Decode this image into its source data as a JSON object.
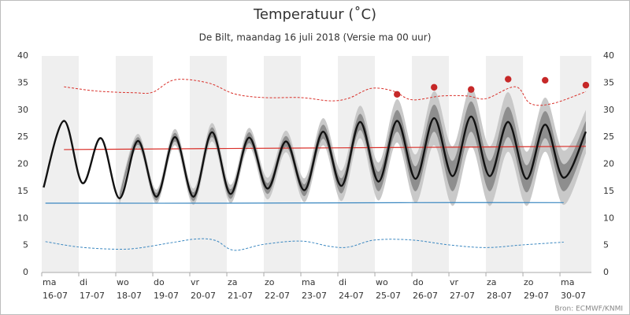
{
  "chart_data": {
    "type": "line",
    "title": "Temperatuur (˚C)",
    "subtitle": "De Bilt, maandag 16 juli 2018 (Versie ma 00 uur)",
    "source": "Bron: ECMWF/KNMI",
    "xlim": [
      0,
      14.85
    ],
    "xticks": [
      {
        "value": 0,
        "label": "ma\n16-07"
      },
      {
        "value": 1,
        "label": "di\n17-07"
      },
      {
        "value": 2,
        "label": "wo\n18-07"
      },
      {
        "value": 3,
        "label": "do\n19-07"
      },
      {
        "value": 4,
        "label": "vr\n20-07"
      },
      {
        "value": 5,
        "label": "za\n21-07"
      },
      {
        "value": 6,
        "label": "zo\n22-07"
      },
      {
        "value": 7,
        "label": "ma\n23-07"
      },
      {
        "value": 8,
        "label": "di\n24-07"
      },
      {
        "value": 9,
        "label": "wo\n25-07"
      },
      {
        "value": 10,
        "label": "do\n26-07"
      },
      {
        "value": 11,
        "label": "vr\n27-07"
      },
      {
        "value": 12,
        "label": "za\n28-07"
      },
      {
        "value": 13,
        "label": "zo\n29-07"
      },
      {
        "value": 14,
        "label": "ma\n30-07"
      }
    ],
    "ylim": [
      0,
      40
    ],
    "yticks": [
      0,
      5,
      10,
      15,
      20,
      25,
      30,
      35,
      40
    ],
    "y2lim": [
      0,
      40
    ],
    "y2ticks": [
      0,
      5,
      10,
      15,
      20,
      25,
      30,
      35,
      40
    ],
    "grid": false,
    "series": [
      {
        "type": "band",
        "color": "#c9c9c9",
        "x": [
          2.1,
          2.6,
          3.1,
          3.6,
          4.1,
          4.6,
          5.1,
          5.6,
          6.1,
          6.6,
          7.1,
          7.6,
          8.1,
          8.6,
          9.1,
          9.6,
          10.1,
          10.6,
          11.1,
          11.6,
          12.1,
          12.6,
          13.1,
          13.6,
          14.1,
          14.7
        ],
        "lower": [
          12.5,
          23.0,
          12.7,
          23.5,
          12.5,
          24.2,
          12.8,
          23.1,
          13.5,
          22.2,
          13.0,
          23.5,
          13.2,
          24.8,
          13.3,
          24.0,
          12.8,
          23.5,
          12.3,
          23.3,
          12.3,
          22.3,
          12.3,
          22.3,
          12.5,
          22.0
        ],
        "upper": [
          14.9,
          25.6,
          15.3,
          26.5,
          15.5,
          27.6,
          16.2,
          26.7,
          17.5,
          26.2,
          17.4,
          28.5,
          18.8,
          30.8,
          20.3,
          32.0,
          21.8,
          33.5,
          23.3,
          34.3,
          23.3,
          33.3,
          22.3,
          32.3,
          22.5,
          30.0
        ]
      },
      {
        "type": "band",
        "color": "#8e8e8e",
        "x": [
          2.1,
          2.6,
          3.1,
          3.6,
          4.1,
          4.6,
          5.1,
          5.6,
          6.1,
          6.6,
          7.1,
          7.6,
          8.1,
          8.6,
          9.1,
          9.6,
          10.1,
          10.6,
          11.1,
          11.6,
          12.1,
          12.6,
          13.1,
          13.6,
          14.1,
          14.7
        ],
        "lower": [
          13.1,
          23.6,
          13.3,
          24.2,
          13.2,
          25.0,
          13.6,
          23.9,
          14.5,
          23.2,
          14.1,
          24.7,
          14.6,
          26.3,
          15.0,
          26.0,
          15.0,
          26.0,
          15.0,
          26.0,
          15.0,
          25.0,
          14.8,
          24.8,
          15.0,
          24.0
        ],
        "upper": [
          14.3,
          25.0,
          14.7,
          25.8,
          14.8,
          26.8,
          15.4,
          25.9,
          16.5,
          25.2,
          16.3,
          27.3,
          17.4,
          29.3,
          18.6,
          30.0,
          19.6,
          31.0,
          20.6,
          31.6,
          20.6,
          30.6,
          19.8,
          29.8,
          20.0,
          28.0
        ]
      },
      {
        "type": "line",
        "color": "#3a87c0",
        "width": 1.2,
        "dash": false,
        "x": [
          0.1,
          5,
          10,
          14.1
        ],
        "values": [
          12.8,
          12.8,
          12.9,
          12.9
        ]
      },
      {
        "type": "line",
        "color": "#d9302a",
        "width": 1.2,
        "dash": false,
        "x": [
          0.6,
          5,
          10,
          14.7
        ],
        "values": [
          22.7,
          22.9,
          23.1,
          23.3
        ]
      },
      {
        "type": "line",
        "color": "#d9302a",
        "width": 1,
        "dash": true,
        "x": [
          0.6,
          1.5,
          2.5,
          3.0,
          3.6,
          4.5,
          5.2,
          6,
          7,
          7.8,
          8.3,
          8.9,
          9.5,
          10,
          10.8,
          11.5,
          12,
          12.8,
          13.2,
          13.8,
          14.7
        ],
        "values": [
          34.3,
          33.5,
          33.2,
          33.3,
          35.6,
          35.0,
          33.0,
          32.3,
          32.3,
          31.7,
          32.2,
          34.0,
          33.5,
          31.9,
          32.6,
          32.6,
          32.1,
          34.3,
          31.2,
          31.2,
          33.4
        ]
      },
      {
        "type": "line",
        "color": "#3a87c0",
        "width": 1,
        "dash": true,
        "x": [
          0.1,
          1,
          2,
          2.6,
          3.5,
          4.2,
          4.7,
          5.2,
          6,
          7,
          7.8,
          8.3,
          9,
          10,
          11,
          12,
          13,
          14.1
        ],
        "values": [
          5.7,
          4.7,
          4.3,
          4.5,
          5.5,
          6.2,
          5.9,
          4.1,
          5.2,
          5.8,
          4.8,
          4.7,
          6.0,
          6.0,
          5.1,
          4.6,
          5.1,
          5.6
        ]
      },
      {
        "type": "line",
        "color": "#111111",
        "width": 2.4,
        "dash": false,
        "x": [
          0.05,
          0.6,
          1.1,
          1.6,
          2.1,
          2.6,
          3.1,
          3.6,
          4.1,
          4.6,
          5.1,
          5.6,
          6.1,
          6.6,
          7.1,
          7.6,
          8.1,
          8.6,
          9.1,
          9.6,
          10.1,
          10.6,
          11.1,
          11.6,
          12.1,
          12.6,
          13.1,
          13.6,
          14.1,
          14.7
        ],
        "values": [
          15.7,
          28,
          16.5,
          24.8,
          13.7,
          24.3,
          14,
          25,
          14,
          25.9,
          14.5,
          24.9,
          15.5,
          24.2,
          15.2,
          26,
          16,
          27.8,
          16.8,
          28,
          17.3,
          28.5,
          17.8,
          28.8,
          17.8,
          27.8,
          17.3,
          27.3,
          17.5,
          26
        ]
      },
      {
        "type": "scatter",
        "color": "#c62828",
        "x": [
          9.6,
          10.6,
          11.6,
          12.6,
          13.6,
          14.7
        ],
        "values": [
          32.9,
          34.2,
          33.8,
          35.7,
          35.5,
          34.6
        ]
      }
    ]
  }
}
